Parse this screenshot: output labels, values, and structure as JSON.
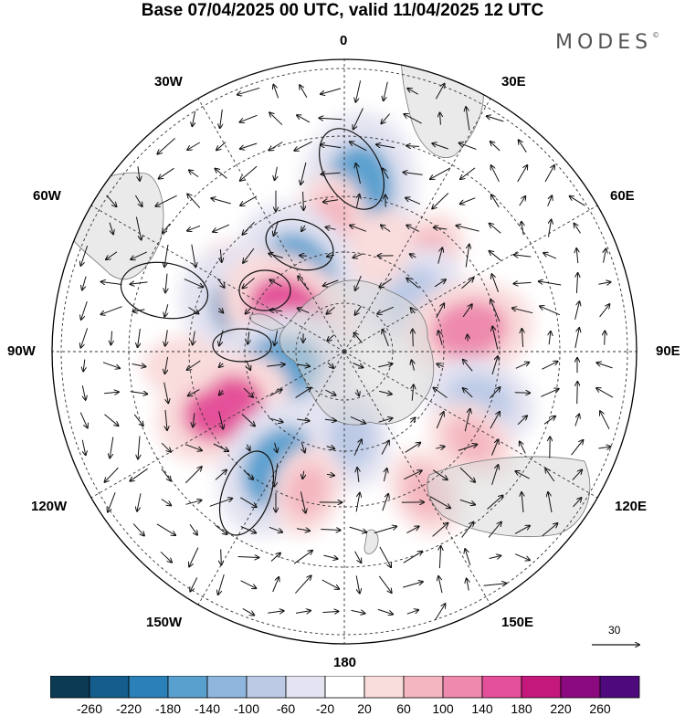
{
  "title": "Base 07/04/2025 00 UTC, valid 11/04/2025 12 UTC",
  "brand": {
    "name": "MODES",
    "mark": "©"
  },
  "longitude_labels": {
    "lon_0": "0",
    "lon_30e": "30E",
    "lon_60e": "60E",
    "lon_90e": "90E",
    "lon_120e": "120E",
    "lon_150e": "150E",
    "lon_180": "180",
    "lon_150w": "150W",
    "lon_120w": "120W",
    "lon_90w": "90W",
    "lon_60w": "60W",
    "lon_30w": "30W"
  },
  "reference_vector": {
    "label": "30"
  },
  "colorbar": {
    "colors": [
      "#0c3a55",
      "#155d8c",
      "#2b80b8",
      "#5aa0cf",
      "#8fb6dc",
      "#bccae6",
      "#e3e3f1",
      "#ffffff",
      "#f9dcdc",
      "#f4b6c0",
      "#ee8aae",
      "#e4519a",
      "#c4187c",
      "#8c0a80",
      "#4e0a7c"
    ],
    "tick_labels": [
      "-260",
      "-220",
      "-180",
      "-140",
      "-100",
      "-60",
      "-20",
      "20",
      "60",
      "100",
      "140",
      "180",
      "220",
      "260"
    ]
  },
  "map": {
    "projection": "south polar stereographic",
    "anomaly_blobs": [
      {
        "lon": 5,
        "lat": -40,
        "value": -180
      },
      {
        "lon": -5,
        "lat": -48,
        "value": 60
      },
      {
        "lon": -30,
        "lat": -55,
        "value": 60
      },
      {
        "lon": -55,
        "lat": -50,
        "value": 60
      },
      {
        "lon": -30,
        "lat": -62,
        "value": -180
      },
      {
        "lon": -65,
        "lat": -60,
        "value": -200
      },
      {
        "lon": -55,
        "lat": -68,
        "value": 160
      },
      {
        "lon": -105,
        "lat": -68,
        "value": -170
      },
      {
        "lon": -115,
        "lat": -48,
        "value": 150
      },
      {
        "lon": -150,
        "lat": -48,
        "value": -160
      },
      {
        "lon": 175,
        "lat": -62,
        "value": -80
      },
      {
        "lon": -165,
        "lat": -45,
        "value": 60
      },
      {
        "lon": 40,
        "lat": -50,
        "value": 60
      },
      {
        "lon": 50,
        "lat": -62,
        "value": -100
      },
      {
        "lon": 80,
        "lat": -50,
        "value": 130
      },
      {
        "lon": 110,
        "lat": -45,
        "value": -100
      },
      {
        "lon": 125,
        "lat": -42,
        "value": 60
      },
      {
        "lon": 150,
        "lat": -40,
        "value": 60
      },
      {
        "lon": -95,
        "lat": -40,
        "value": 40
      },
      {
        "lon": 20,
        "lat": -55,
        "value": 40
      }
    ]
  }
}
